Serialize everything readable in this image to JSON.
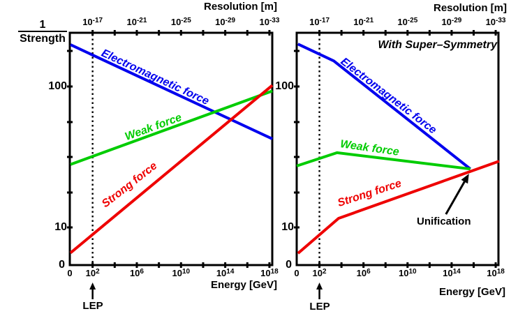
{
  "colors": {
    "electromagnetic": "#0000EE",
    "weak": "#00CC00",
    "strong": "#EE0000",
    "axis": "#000000",
    "background": "#FFFFFF"
  },
  "labels": {
    "y_axis_numerator": "1",
    "y_axis_denominator": "Strength",
    "top_axis_title": "Resolution [m]",
    "bottom_axis_title": "Energy [GeV]",
    "lep": "LEP",
    "em_force": "Electromagnetic force",
    "weak_force": "Weak force",
    "strong_force": "Strong force",
    "susy_title": "With Super–Symmetry",
    "unification": "Unification"
  },
  "ticks": {
    "top": [
      {
        "base": "10",
        "exp": "-17"
      },
      {
        "base": "10",
        "exp": "-21"
      },
      {
        "base": "10",
        "exp": "-25"
      },
      {
        "base": "10",
        "exp": "-29"
      },
      {
        "base": "10",
        "exp": "-33"
      }
    ],
    "bottom": [
      {
        "base": "0",
        "exp": ""
      },
      {
        "base": "10",
        "exp": "2"
      },
      {
        "base": "10",
        "exp": "6"
      },
      {
        "base": "10",
        "exp": "10"
      },
      {
        "base": "10",
        "exp": "14"
      },
      {
        "base": "10",
        "exp": "18"
      }
    ],
    "y": [
      {
        "text": "100",
        "value": 100
      },
      {
        "text": "10",
        "value": 10
      },
      {
        "text": "0",
        "value": 0
      }
    ]
  },
  "chart_data": [
    {
      "type": "line",
      "title": "",
      "xlabel": "Energy [GeV]",
      "x2label": "Resolution [m]",
      "ylabel": "1/Strength",
      "x_scale": "log10(GeV), 0 to 18.3 decades",
      "y_scale": "log, labeled ticks 10 and 100",
      "x_ticks_energy": [
        "0",
        "10^2",
        "10^6",
        "10^10",
        "10^14",
        "10^18"
      ],
      "x_ticks_resolution": [
        "10^-17",
        "10^-21",
        "10^-25",
        "10^-29",
        "10^-33"
      ],
      "y_ticks": [
        "0",
        "10",
        "100"
      ],
      "lep_marker_log10gev": 2,
      "series": [
        {
          "name": "Electromagnetic force",
          "color_key": "electromagnetic",
          "points": [
            [
              0,
              198
            ],
            [
              18.26,
              42.5
            ]
          ]
        },
        {
          "name": "Weak force",
          "color_key": "weak",
          "points": [
            [
              0,
              28
            ],
            [
              18.26,
              93
            ]
          ]
        },
        {
          "name": "Strong force",
          "color_key": "strong",
          "points": [
            [
              0,
              6.6
            ],
            [
              18.26,
              102
            ]
          ]
        }
      ]
    },
    {
      "type": "line",
      "title": "With Super–Symmetry",
      "xlabel": "Energy [GeV]",
      "x2label": "Resolution [m]",
      "ylabel": "1/Strength",
      "x_scale": "log10(GeV), 0 to 18.3 decades",
      "y_scale": "log, labeled ticks 10 and 100",
      "x_ticks_energy": [
        "0",
        "10^2",
        "10^6",
        "10^10",
        "10^14",
        "10^18"
      ],
      "x_ticks_resolution": [
        "10^-17",
        "10^-21",
        "10^-25",
        "10^-29",
        "10^-33"
      ],
      "y_ticks": [
        "0",
        "10",
        "100"
      ],
      "lep_marker_log10gev": 2,
      "series": [
        {
          "name": "Electromagnetic force",
          "color_key": "electromagnetic",
          "points": [
            [
              0.05,
              200
            ],
            [
              3.3,
              152
            ],
            [
              15.7,
              26
            ]
          ]
        },
        {
          "name": "Weak force",
          "color_key": "weak",
          "points": [
            [
              -0.06,
              27.3
            ],
            [
              3.6,
              33.9
            ],
            [
              15.7,
              26
            ]
          ]
        },
        {
          "name": "Strong force",
          "color_key": "strong",
          "points": [
            [
              0.06,
              6.55
            ],
            [
              3.74,
              11.6
            ],
            [
              18.31,
              29.5
            ]
          ]
        }
      ],
      "annotation": {
        "label": "Unification",
        "at": [
          15.7,
          26
        ]
      }
    }
  ]
}
